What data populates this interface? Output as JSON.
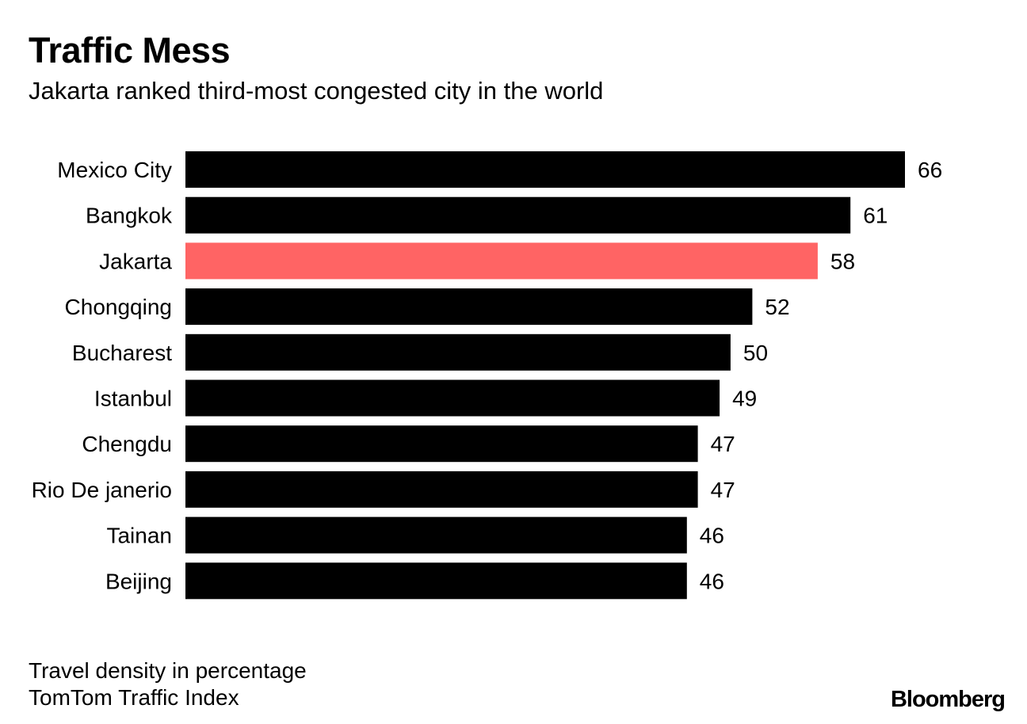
{
  "chart_data": {
    "type": "bar",
    "orientation": "horizontal",
    "title": "Traffic Mess",
    "subtitle": "Jakarta ranked third-most congested city in the world",
    "categories": [
      "Mexico City",
      "Bangkok",
      "Jakarta",
      "Chongqing",
      "Bucharest",
      "Istanbul",
      "Chengdu",
      "Rio De janerio",
      "Tainan",
      "Beijing"
    ],
    "values": [
      66,
      61,
      58,
      52,
      50,
      49,
      47,
      47,
      46,
      46
    ],
    "highlight": "Jakarta",
    "colors": {
      "default": "#000000",
      "highlight": "#ff6464"
    },
    "xlim": [
      0,
      66
    ],
    "xlabel": "",
    "ylabel": "",
    "grid": false,
    "legend": "none"
  },
  "footer": {
    "note": "Travel density in percentage",
    "source": "TomTom Traffic Index",
    "brand": "Bloomberg"
  }
}
